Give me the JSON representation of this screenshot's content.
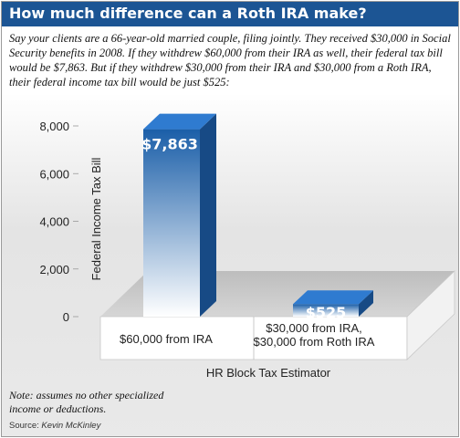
{
  "title": "How much difference can a Roth IRA make?",
  "intro": "Say your clients are a 66-year-old married couple, filing jointly. They received $30,000 in Social Security benefits in 2008. If they withdrew $60,000 from their IRA as well, their federal tax bill would be $7,863. But if they withdrew $30,000 from their IRA and $30,000 from a Roth IRA, their federal income tax bill would be just $525:",
  "note": "Note: assumes no other specialized income or deductions.",
  "source_label": "Source:",
  "source_name": "Kevin McKinley",
  "colors": {
    "title_bg": "#1c5594",
    "bar_front_top": "#1a5ea8",
    "bar_front_bottom": "#ffffff",
    "bar_side": "#174a85",
    "bar_top": "#2f7bd0"
  },
  "chart_data": {
    "type": "bar",
    "title": "",
    "xlabel": "HR Block Tax Estimator",
    "ylabel": "Federal Income Tax Bill",
    "ylim": [
      0,
      8000
    ],
    "yticks": [
      "8,000",
      "6,000",
      "4,000",
      "2,000",
      "0"
    ],
    "ytick_values": [
      8000,
      6000,
      4000,
      2000,
      0
    ],
    "categories": [
      "$60,000 from IRA",
      "$30,000 from IRA,\n$30,000 from Roth IRA"
    ],
    "values": [
      7863,
      525
    ],
    "data_labels": [
      "$7,863",
      "$525"
    ],
    "grid": false
  }
}
